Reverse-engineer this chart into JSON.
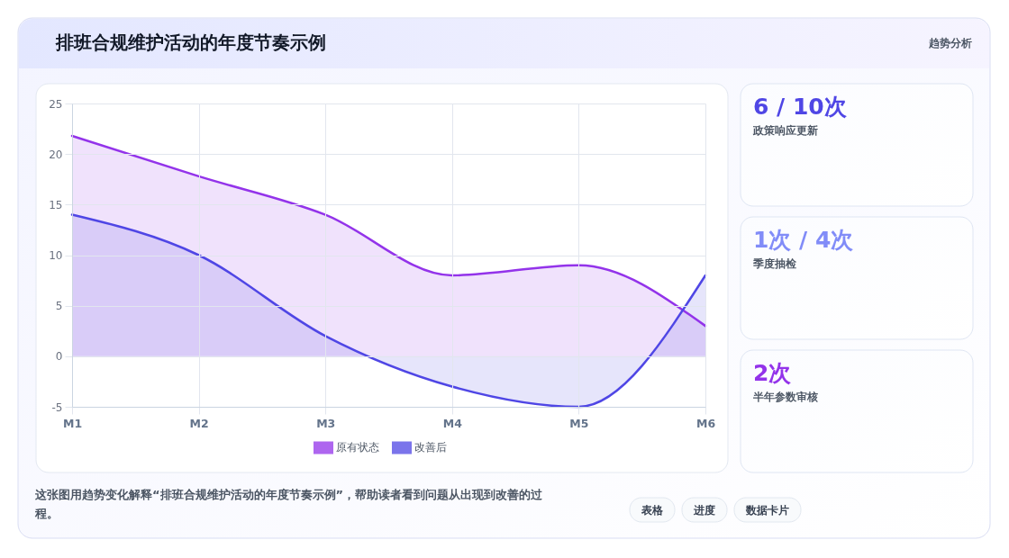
{
  "chart_data": [
    {
      "type": "area",
      "title": "排班合规维护活动的年度节奏示例",
      "categories": [
        "M1",
        "M2",
        "M3",
        "M4",
        "M5",
        "M6"
      ],
      "series": [
        {
          "name": "原有状态",
          "color": "#9333ea",
          "values": [
            21.8,
            17.8,
            14,
            8,
            9,
            3
          ]
        },
        {
          "name": "改善后",
          "color": "#4f46e5",
          "values": [
            14,
            10,
            2,
            -3,
            -5,
            8
          ]
        }
      ],
      "ylim": [
        -5,
        25
      ],
      "yticks": [
        -5,
        0,
        5,
        10,
        15,
        20,
        25
      ],
      "grid": true,
      "legend": "bottom",
      "annotations": [
        "这张图用趋势变化解释“排班合规维护活动的年度节奏示例”，帮助读者看到问题从出现到改善的过程。",
        "表格",
        "进度",
        "数据卡片"
      ]
    },
    {
      "type": "other",
      "title": "6 / 10次",
      "subtitle": "政策响应更新",
      "color": "#4f46e5",
      "annotations": [
        "趋势分析"
      ]
    },
    {
      "type": "other",
      "title": "1次 / 4次",
      "subtitle": "季度抽检",
      "color": "#818cf8"
    },
    {
      "type": "other",
      "title": "2次",
      "subtitle": "半年参数审核",
      "color": "#9333ea"
    }
  ]
}
